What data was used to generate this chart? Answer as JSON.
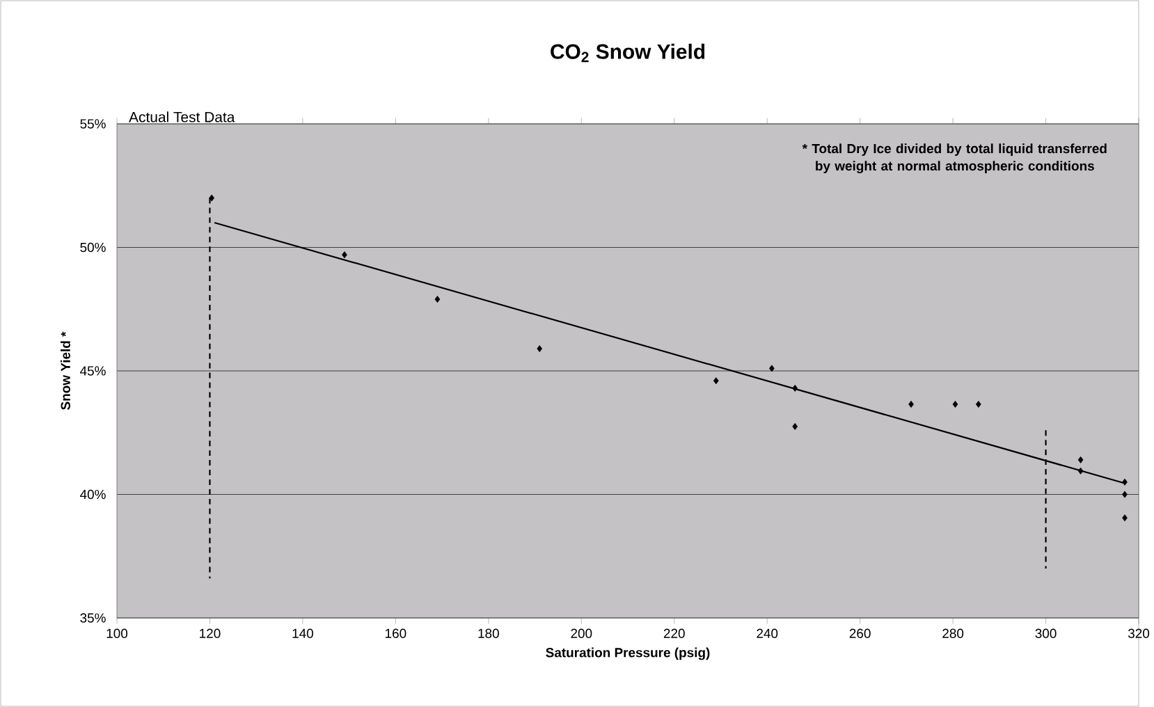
{
  "chart_data": {
    "type": "scatter",
    "title": "CO$_{2}$ Snow Yield",
    "xlabel": "Saturation Pressure (psig)",
    "ylabel": "Snow Yield *",
    "annotations": [
      "Actual Test Data",
      "* Total Dry Ice divided by total liquid transferred by weight at normal atmospheric conditions"
    ],
    "series": [
      {
        "color": "#000000",
        "marker": "diamond",
        "x": [
          120.4,
          149,
          169,
          191,
          229,
          241,
          246,
          246,
          271,
          280.5,
          285.5,
          307.5,
          307.5,
          317,
          317,
          317
        ],
        "values": [
          52.0,
          49.7,
          47.9,
          45.9,
          44.6,
          45.1,
          44.3,
          42.75,
          43.65,
          43.65,
          43.65,
          41.4,
          40.95,
          40.5,
          40.0,
          39.05
        ]
      },
      {
        "type": "line",
        "color": "#000000",
        "marker": "none",
        "line_style": "solid",
        "x": [
          121,
          317
        ],
        "values": [
          51.0,
          40.45
        ]
      },
      {
        "type": "line",
        "color": "#000000",
        "marker": "none",
        "line_style": "dashed",
        "x": [
          120,
          120
        ],
        "values": [
          52.0,
          36.6
        ]
      },
      {
        "type": "line",
        "color": "#000000",
        "marker": "none",
        "line_style": "dashed",
        "x": [
          300,
          300
        ],
        "values": [
          42.6,
          37.0
        ]
      }
    ],
    "xlim": [
      100,
      320
    ],
    "xticks": [
      100,
      120,
      140,
      160,
      180,
      200,
      220,
      240,
      260,
      280,
      300,
      320
    ],
    "ylim": [
      35,
      55
    ],
    "yticks": [
      {
        "value": 35,
        "label": "35%"
      },
      {
        "value": 40,
        "label": "40%"
      },
      {
        "value": 45,
        "label": "45%"
      },
      {
        "value": 50,
        "label": "50%"
      },
      {
        "value": 55,
        "label": "55%"
      }
    ],
    "grid": "y"
  }
}
